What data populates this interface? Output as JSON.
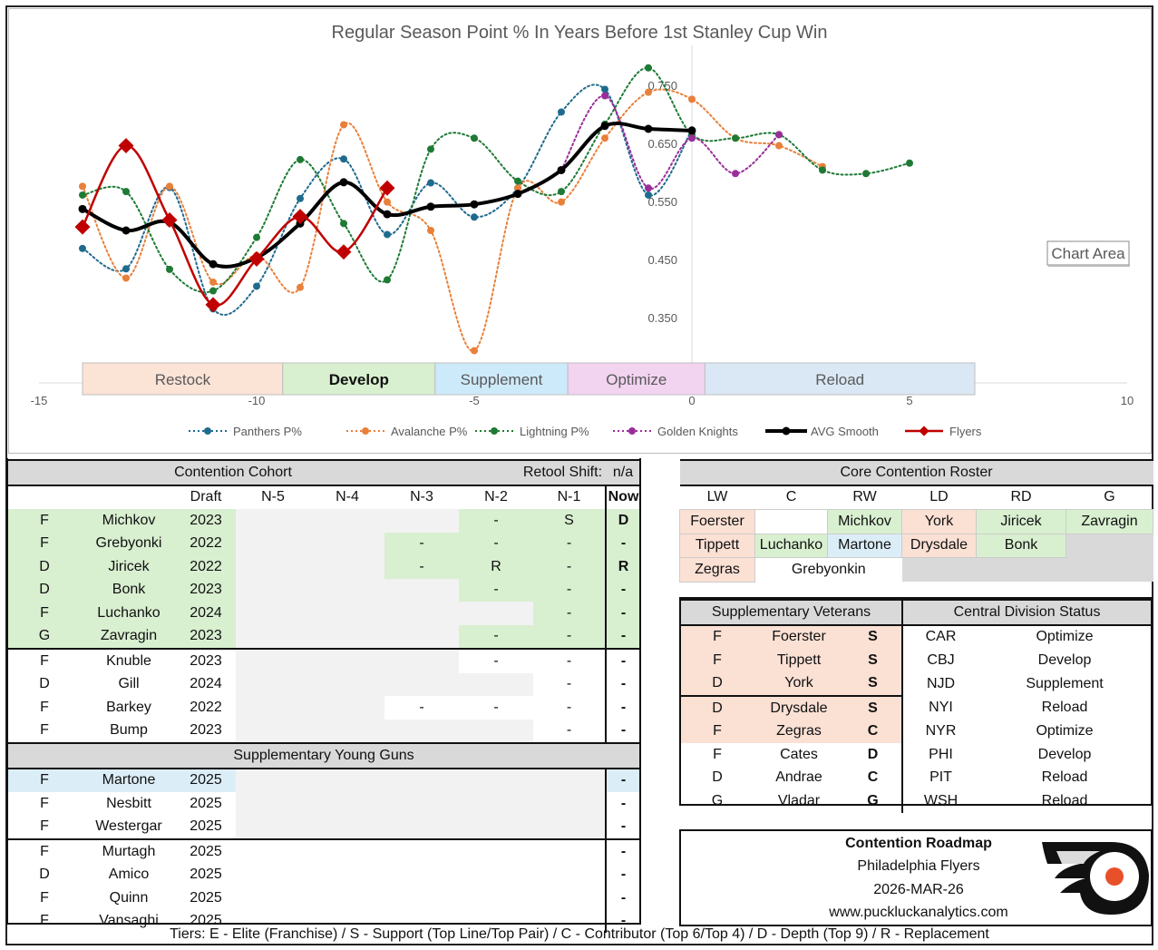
{
  "chart_data": {
    "type": "line",
    "title": "Regular Season Point % In Years Before 1st Stanley Cup Win",
    "xlim": [
      -15,
      10
    ],
    "x_ticks": [
      "-15",
      "-10",
      "-5",
      "0",
      "5",
      "10"
    ],
    "y_ticks": [
      "0.750",
      "0.650",
      "0.550",
      "0.450",
      "0.350"
    ],
    "y_ticks_num": [
      0.75,
      0.65,
      0.55,
      0.45,
      0.35
    ],
    "ylim": [
      0.25,
      0.8
    ],
    "tooltip": "Chart Area",
    "phases": [
      {
        "label": "Restock",
        "from": -14,
        "to": -9.4,
        "color": "#fbe3d6"
      },
      {
        "label": "Develop",
        "from": -9.4,
        "to": -5.9,
        "color": "#d8f0d0"
      },
      {
        "label": "Supplement",
        "from": -5.9,
        "to": -2.85,
        "color": "#cdeafa"
      },
      {
        "label": "Optimize",
        "from": -2.85,
        "to": 0.3,
        "color": "#f2d3f0"
      },
      {
        "label": "Reload",
        "from": 0.3,
        "to": 6.5,
        "color": "#dae8f5"
      }
    ],
    "series": [
      {
        "name": "Panthers P%",
        "color": "#1f6b8e",
        "style": "dotted",
        "x": [
          -14,
          -13,
          -12,
          -11,
          -10,
          -9,
          -8,
          -7,
          -6,
          -5,
          -4,
          -3,
          -2,
          -1,
          0
        ],
        "y": [
          0.469,
          0.434,
          0.574,
          0.365,
          0.404,
          0.555,
          0.623,
          0.493,
          0.582,
          0.523,
          0.573,
          0.704,
          0.743,
          0.561,
          0.673
        ]
      },
      {
        "name": "Avalanche P%",
        "color": "#e8803a",
        "style": "dotted",
        "x": [
          -14,
          -13,
          -12,
          -11,
          -10,
          -9,
          -8,
          -7,
          -6,
          -5,
          -4,
          -3,
          -2,
          -1,
          0,
          1,
          2,
          3
        ],
        "y": [
          0.576,
          0.418,
          0.576,
          0.411,
          0.457,
          0.402,
          0.682,
          0.549,
          0.5,
          0.293,
          0.573,
          0.549,
          0.659,
          0.738,
          0.726,
          0.659,
          0.646,
          0.61
        ]
      },
      {
        "name": "Lightning P%",
        "color": "#1e7a34",
        "style": "dotted",
        "x": [
          -14,
          -13,
          -12,
          -11,
          -10,
          -9,
          -8,
          -7,
          -6,
          -5,
          -4,
          -3,
          -2,
          -1,
          0,
          1,
          2,
          3,
          4,
          5
        ],
        "y": [
          0.561,
          0.567,
          0.433,
          0.396,
          0.488,
          0.622,
          0.512,
          0.415,
          0.64,
          0.659,
          0.585,
          0.567,
          0.683,
          0.78,
          0.665,
          0.659,
          0.665,
          0.604,
          0.598,
          0.616
        ]
      },
      {
        "name": "Golden Knights",
        "color": "#9b2d9b",
        "style": "dotted",
        "x": [
          -3,
          -2,
          -1,
          0,
          1,
          2
        ],
        "y": [
          0.604,
          0.732,
          0.573,
          0.659,
          0.598,
          0.665
        ]
      },
      {
        "name": "AVG Smooth",
        "color": "#000000",
        "style": "solid-thick",
        "x": [
          -14,
          -13,
          -12,
          -11,
          -10,
          -9,
          -8,
          -7,
          -6,
          -5,
          -4,
          -3,
          -2,
          -1,
          0
        ],
        "y": [
          0.537,
          0.5,
          0.514,
          0.442,
          0.453,
          0.512,
          0.583,
          0.528,
          0.541,
          0.545,
          0.563,
          0.604,
          0.68,
          0.675,
          0.672
        ]
      },
      {
        "name": "Flyers",
        "color": "#c00000",
        "style": "solid-diamond",
        "x": [
          -14,
          -13,
          -12,
          -11,
          -10,
          -9,
          -8,
          -7
        ],
        "y": [
          0.506,
          0.646,
          0.518,
          0.372,
          0.451,
          0.524,
          0.463,
          0.573
        ]
      }
    ]
  },
  "cohort": {
    "title": "Contention Cohort",
    "retool_label": "Retool Shift:",
    "retool_value": "n/a",
    "headers": [
      "",
      "",
      "Draft",
      "N-5",
      "N-4",
      "N-3",
      "N-2",
      "N-1",
      "Now"
    ],
    "group1": [
      [
        "F",
        "Michkov",
        "2023",
        "",
        "",
        "",
        "-",
        "S",
        "D"
      ],
      [
        "F",
        "Grebyonki",
        "2022",
        "",
        "",
        "-",
        "-",
        "-",
        "-"
      ],
      [
        "D",
        "Jiricek",
        "2022",
        "",
        "",
        "-",
        "R",
        "-",
        "R"
      ],
      [
        "D",
        "Bonk",
        "2023",
        "",
        "",
        "",
        "-",
        "-",
        "-"
      ],
      [
        "F",
        "Luchanko",
        "2024",
        "",
        "",
        "",
        "",
        "-",
        "-"
      ],
      [
        "G",
        "Zavragin",
        "2023",
        "",
        "",
        "",
        "-",
        "-",
        "-"
      ]
    ],
    "group2": [
      [
        "F",
        "Knuble",
        "2023",
        "",
        "",
        "",
        "-",
        "-",
        "-"
      ],
      [
        "D",
        "Gill",
        "2024",
        "",
        "",
        "",
        "",
        "-",
        "-"
      ],
      [
        "F",
        "Barkey",
        "2022",
        "",
        "",
        "-",
        "-",
        "-",
        "-"
      ],
      [
        "F",
        "Bump",
        "2023",
        "",
        "",
        "",
        "",
        "-",
        "-"
      ]
    ],
    "young_title": "Supplementary Young Guns",
    "young": [
      [
        "F",
        "Martone",
        "2025",
        "",
        "",
        "",
        "",
        "",
        "-"
      ],
      [
        "F",
        "Nesbitt",
        "2025",
        "",
        "",
        "",
        "",
        "",
        "-"
      ],
      [
        "F",
        "Westergar",
        "2025",
        "",
        "",
        "",
        "",
        "",
        "-"
      ]
    ],
    "young2": [
      [
        "F",
        "Murtagh",
        "2025",
        "",
        "",
        "",
        "",
        "",
        "-"
      ],
      [
        "D",
        "Amico",
        "2025",
        "",
        "",
        "",
        "",
        "",
        "-"
      ],
      [
        "F",
        "Quinn",
        "2025",
        "",
        "",
        "",
        "",
        "",
        "-"
      ],
      [
        "F",
        "Vansaghi",
        "2025",
        "",
        "",
        "",
        "",
        "",
        "-"
      ]
    ]
  },
  "core": {
    "title": "Core Contention Roster",
    "headers": [
      "LW",
      "C",
      "RW",
      "LD",
      "RD",
      "G"
    ],
    "rows": [
      [
        "Foerster",
        "",
        "Michkov",
        "York",
        "Jiricek",
        "Zavragin"
      ],
      [
        "Tippett",
        "Luchanko",
        "Martone",
        "Drysdale",
        "Bonk",
        ""
      ],
      [
        "Zegras",
        "Grebyonkin",
        "",
        "",
        "",
        ""
      ]
    ]
  },
  "veterans": {
    "title": "Supplementary Veterans",
    "rows": [
      [
        "F",
        "Foerster",
        "S"
      ],
      [
        "F",
        "Tippett",
        "S"
      ],
      [
        "D",
        "York",
        "S"
      ],
      [
        "D",
        "Drysdale",
        "S"
      ],
      [
        "F",
        "Zegras",
        "C"
      ],
      [
        "F",
        "Cates",
        "D"
      ],
      [
        "D",
        "Andrae",
        "C"
      ],
      [
        "G",
        "Vladar",
        "G"
      ]
    ]
  },
  "division": {
    "title": "Central Division Status",
    "rows": [
      [
        "CAR",
        "Optimize"
      ],
      [
        "CBJ",
        "Develop"
      ],
      [
        "NJD",
        "Supplement"
      ],
      [
        "NYI",
        "Reload"
      ],
      [
        "NYR",
        "Optimize"
      ],
      [
        "PHI",
        "Develop"
      ],
      [
        "PIT",
        "Reload"
      ],
      [
        "WSH",
        "Reload"
      ]
    ]
  },
  "roadmap": {
    "title": "Contention Roadmap",
    "team": "Philadelphia Flyers",
    "date": "2026-MAR-26",
    "url": "www.puckluckanalytics.com"
  },
  "tiers": "Tiers:  E - Elite (Franchise) / S - Support (Top Line/Top Pair) / C - Contributor (Top 6/Top 4) / D - Depth (Top 9) / R - Replacement",
  "colors": {
    "green": "#d8efd0",
    "pink": "#fbe0d4",
    "blue": "#dbeef8",
    "gray": "#f2f2f2",
    "header": "#d9d9d9",
    "flyers_orange": "#e8502a"
  }
}
